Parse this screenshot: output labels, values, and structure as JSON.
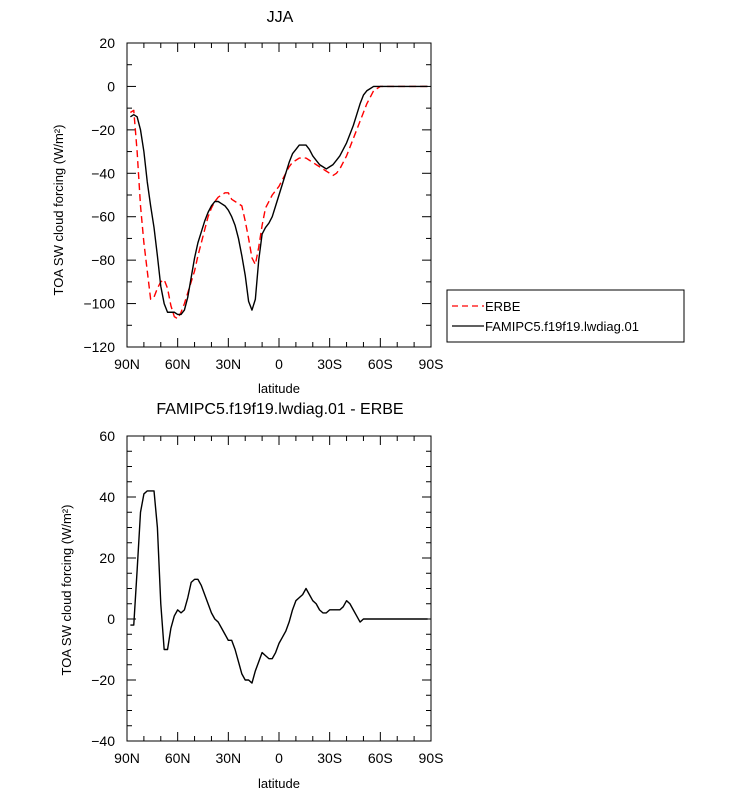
{
  "chart_data": [
    {
      "type": "line",
      "title": "JJA",
      "xlabel": "latitude",
      "ylabel": "TOA SW cloud forcing (W/m²)",
      "ylim": [
        -120,
        20
      ],
      "xlim": [
        90,
        -90
      ],
      "xticks": [
        90,
        60,
        30,
        0,
        -30,
        -60,
        -90
      ],
      "xtick_labels": [
        "90N",
        "60N",
        "30N",
        "0",
        "30S",
        "60S",
        "90S"
      ],
      "yticks": [
        20,
        0,
        -20,
        -40,
        -60,
        -80,
        -100,
        -120
      ],
      "legend_position": "right",
      "series": [
        {
          "name": "ERBE",
          "color": "#ff0000",
          "dash": "dashed",
          "x": [
            88,
            86,
            84,
            82,
            80,
            78,
            76,
            74,
            72,
            70,
            68,
            66,
            64,
            62,
            60,
            58,
            56,
            54,
            52,
            50,
            48,
            46,
            44,
            42,
            40,
            38,
            36,
            34,
            32,
            30,
            28,
            26,
            24,
            22,
            20,
            18,
            16,
            14,
            12,
            10,
            8,
            6,
            4,
            2,
            0,
            -2,
            -4,
            -6,
            -8,
            -10,
            -12,
            -14,
            -16,
            -18,
            -20,
            -22,
            -24,
            -26,
            -28,
            -30,
            -32,
            -34,
            -36,
            -38,
            -40,
            -42,
            -44,
            -46,
            -48,
            -50,
            -52,
            -54,
            -56,
            -58,
            -60,
            -62,
            -64,
            -66,
            -68,
            -70,
            -72,
            -74,
            -76,
            -78,
            -80,
            -82,
            -84,
            -86,
            -88
          ],
          "values": [
            -12,
            -11,
            -30,
            -55,
            -72,
            -85,
            -98,
            -97,
            -93,
            -90,
            -89,
            -93,
            -101,
            -106,
            -107,
            -104,
            -100,
            -95,
            -90,
            -85,
            -78,
            -72,
            -66,
            -60,
            -56,
            -53,
            -51,
            -50,
            -49,
            -49,
            -52,
            -53,
            -54,
            -55,
            -62,
            -70,
            -79,
            -82,
            -74,
            -64,
            -56,
            -53,
            -50,
            -48,
            -46,
            -43,
            -40,
            -37,
            -35,
            -34,
            -33,
            -33,
            -33,
            -34,
            -35,
            -36,
            -37,
            -38,
            -39,
            -40,
            -41,
            -40,
            -38,
            -35,
            -32,
            -28,
            -24,
            -20,
            -16,
            -12,
            -8,
            -5,
            -2,
            -1,
            0,
            0,
            0,
            0,
            0,
            0,
            0,
            0,
            0,
            0,
            0,
            0,
            0,
            0,
            0
          ]
        },
        {
          "name": "FAMIPC5.f19f19.lwdiag.01",
          "color": "#000000",
          "dash": "solid",
          "x": [
            88,
            86,
            84,
            82,
            80,
            78,
            76,
            74,
            72,
            70,
            68,
            66,
            64,
            62,
            60,
            58,
            56,
            54,
            52,
            50,
            48,
            46,
            44,
            42,
            40,
            38,
            36,
            34,
            32,
            30,
            28,
            26,
            24,
            22,
            20,
            18,
            16,
            14,
            12,
            10,
            8,
            6,
            4,
            2,
            0,
            -2,
            -4,
            -6,
            -8,
            -10,
            -12,
            -14,
            -16,
            -18,
            -20,
            -22,
            -24,
            -26,
            -28,
            -30,
            -32,
            -34,
            -36,
            -38,
            -40,
            -42,
            -44,
            -46,
            -48,
            -50,
            -52,
            -54,
            -56,
            -58,
            -60,
            -62,
            -64,
            -66,
            -68,
            -70,
            -72,
            -74,
            -76,
            -78,
            -80,
            -82,
            -84,
            -86,
            -88
          ],
          "values": [
            -14,
            -13,
            -14,
            -20,
            -30,
            -44,
            -55,
            -65,
            -78,
            -92,
            -100,
            -104,
            -104,
            -104,
            -105,
            -105,
            -103,
            -97,
            -88,
            -79,
            -72,
            -67,
            -62,
            -58,
            -55,
            -53,
            -53,
            -54,
            -55,
            -57,
            -60,
            -64,
            -70,
            -78,
            -87,
            -99,
            -103,
            -98,
            -80,
            -68,
            -65,
            -63,
            -60,
            -55,
            -50,
            -45,
            -40,
            -35,
            -31,
            -29,
            -27,
            -27,
            -27,
            -29,
            -32,
            -34,
            -36,
            -37,
            -38,
            -37,
            -36,
            -34,
            -32,
            -29,
            -26,
            -22,
            -18,
            -13,
            -8,
            -4,
            -2,
            -1,
            0,
            0,
            0,
            0,
            0,
            0,
            0,
            0,
            0,
            0,
            0,
            0,
            0,
            0,
            0,
            0,
            0
          ]
        }
      ]
    },
    {
      "type": "line",
      "title": "FAMIPC5.f19f19.lwdiag.01 - ERBE",
      "xlabel": "latitude",
      "ylabel": "TOA SW cloud forcing (W/m²)",
      "ylim": [
        -40,
        60
      ],
      "xlim": [
        90,
        -90
      ],
      "xticks": [
        90,
        60,
        30,
        0,
        -30,
        -60,
        -90
      ],
      "xtick_labels": [
        "90N",
        "60N",
        "30N",
        "0",
        "30S",
        "60S",
        "90S"
      ],
      "yticks": [
        60,
        40,
        20,
        0,
        -20,
        -40
      ],
      "series": [
        {
          "color": "#000000",
          "dash": "solid",
          "x": [
            88,
            86,
            84,
            82,
            80,
            78,
            76,
            74,
            72,
            70,
            68,
            66,
            64,
            62,
            60,
            58,
            56,
            54,
            52,
            50,
            48,
            46,
            44,
            42,
            40,
            38,
            36,
            34,
            32,
            30,
            28,
            26,
            24,
            22,
            20,
            18,
            16,
            14,
            12,
            10,
            8,
            6,
            4,
            2,
            0,
            -2,
            -4,
            -6,
            -8,
            -10,
            -12,
            -14,
            -16,
            -18,
            -20,
            -22,
            -24,
            -26,
            -28,
            -30,
            -32,
            -34,
            -36,
            -38,
            -40,
            -42,
            -44,
            -46,
            -48,
            -50,
            -52,
            -54,
            -56,
            -58,
            -60,
            -62,
            -64,
            -66,
            -68,
            -70,
            -72,
            -74,
            -76,
            -78,
            -80,
            -82,
            -84,
            -86,
            -88
          ],
          "values": [
            -2,
            -2,
            16,
            35,
            41,
            42,
            42,
            42,
            30,
            5,
            -10,
            -10,
            -3,
            1,
            3,
            2,
            3,
            7,
            12,
            13,
            13,
            11,
            8,
            5,
            2,
            0,
            -1,
            -3,
            -5,
            -7,
            -7,
            -10,
            -14,
            -18,
            -20,
            -20,
            -21,
            -17,
            -14,
            -11,
            -12,
            -13,
            -13,
            -11,
            -8,
            -6,
            -4,
            -1,
            3,
            6,
            7,
            8,
            10,
            8,
            6,
            5,
            3,
            2,
            2,
            3,
            3,
            3,
            3,
            4,
            6,
            5,
            3,
            1,
            -1,
            0,
            0,
            0,
            0,
            0,
            0,
            0,
            0,
            0,
            0,
            0,
            0,
            0,
            0,
            0,
            0,
            0,
            0,
            0,
            0
          ]
        }
      ]
    }
  ]
}
